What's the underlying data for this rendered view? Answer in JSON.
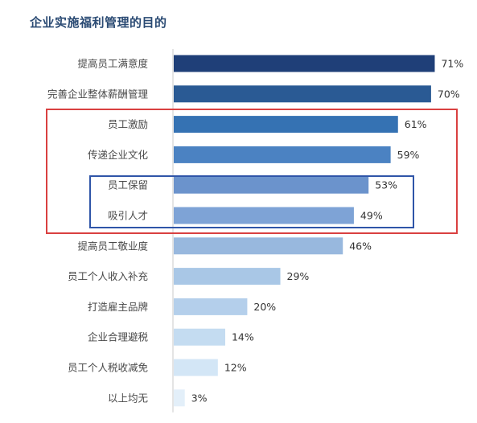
{
  "chart_data": {
    "type": "bar",
    "orientation": "horizontal",
    "title": "企业实施福利管理的目的",
    "categories": [
      "提高员工满意度",
      "完善企业整体薪酬管理",
      "员工激励",
      "传递企业文化",
      "员工保留",
      "吸引人才",
      "提高员工敬业度",
      "员工个人收入补充",
      "打造雇主品牌",
      "企业合理避税",
      "员工个人税收减免",
      "以上均无"
    ],
    "values": [
      71,
      70,
      61,
      59,
      53,
      49,
      46,
      29,
      20,
      14,
      12,
      3
    ],
    "value_labels": [
      "71%",
      "70%",
      "61%",
      "59%",
      "53%",
      "49%",
      "46%",
      "29%",
      "20%",
      "14%",
      "12%",
      "3%"
    ],
    "unit": "%",
    "xlim": [
      0,
      100
    ],
    "grid": false,
    "bar_colors": [
      "#1f3f78",
      "#2a5a94",
      "#3572b3",
      "#4b82c2",
      "#6b93cc",
      "#7ea3d6",
      "#98b8de",
      "#a9c7e6",
      "#b4cfeb",
      "#c4dcf1",
      "#d3e6f6",
      "#e3eff9"
    ],
    "highlight_colors": {
      "red_box": "#d94040",
      "blue_box": "#2f55a8"
    }
  }
}
